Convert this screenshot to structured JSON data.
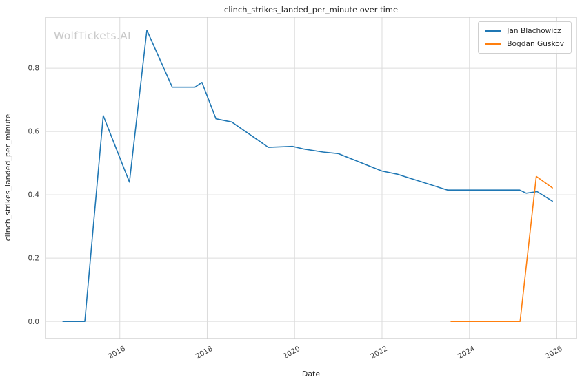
{
  "watermark": "WolfTickets.AI",
  "chart_data": {
    "type": "line",
    "title": "clinch_strikes_landed_per_minute over time",
    "xlabel": "Date",
    "ylabel": "clinch_strikes_landed_per_minute",
    "grid": true,
    "legend_position": "upper right",
    "xlim": [
      2014.3,
      2026.45
    ],
    "ylim": [
      -0.054,
      0.961
    ],
    "xticks": [
      2016,
      2018,
      2020,
      2022,
      2024,
      2026
    ],
    "xtick_labels": [
      "2016",
      "2018",
      "2020",
      "2022",
      "2024",
      "2026"
    ],
    "yticks": [
      0.0,
      0.2,
      0.4,
      0.6,
      0.8
    ],
    "ytick_labels": [
      "0.0",
      "0.2",
      "0.4",
      "0.6",
      "0.8"
    ],
    "series": [
      {
        "name": "Jan Blachowicz",
        "color": "#1f77b4",
        "points": [
          [
            2014.7,
            0.0
          ],
          [
            2015.2,
            0.0
          ],
          [
            2015.62,
            0.65
          ],
          [
            2016.22,
            0.44
          ],
          [
            2016.62,
            0.92
          ],
          [
            2017.2,
            0.74
          ],
          [
            2017.72,
            0.74
          ],
          [
            2017.88,
            0.755
          ],
          [
            2018.2,
            0.64
          ],
          [
            2018.56,
            0.63
          ],
          [
            2019.4,
            0.55
          ],
          [
            2019.95,
            0.553
          ],
          [
            2020.2,
            0.545
          ],
          [
            2020.65,
            0.535
          ],
          [
            2021.0,
            0.53
          ],
          [
            2022.0,
            0.475
          ],
          [
            2022.35,
            0.465
          ],
          [
            2023.5,
            0.415
          ],
          [
            2025.15,
            0.415
          ],
          [
            2025.3,
            0.405
          ],
          [
            2025.55,
            0.41
          ],
          [
            2025.9,
            0.38
          ]
        ]
      },
      {
        "name": "Bogdan Guskov",
        "color": "#ff7f0e",
        "points": [
          [
            2023.58,
            0.0
          ],
          [
            2025.16,
            0.0
          ],
          [
            2025.53,
            0.458
          ],
          [
            2025.9,
            0.422
          ]
        ]
      }
    ]
  }
}
